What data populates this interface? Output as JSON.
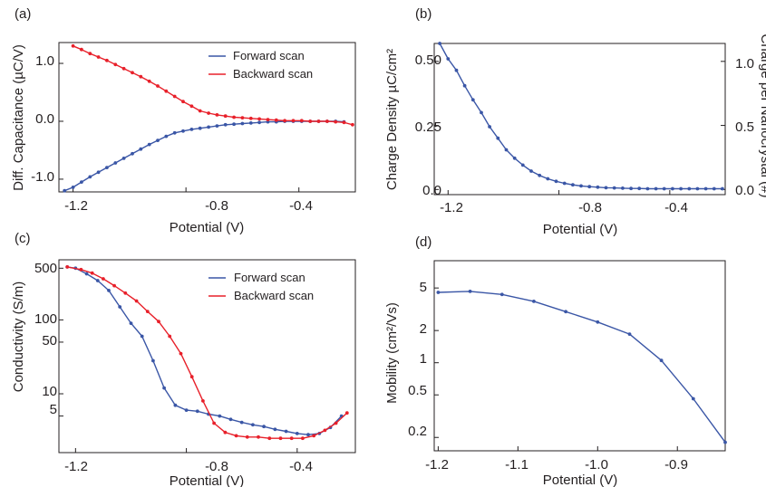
{
  "colors": {
    "forward": "#3a56a6",
    "backward": "#e8202a",
    "axis": "#231f20"
  },
  "chart_data": [
    {
      "panel": "(a)",
      "type": "line",
      "xlabel": "Potential (V)",
      "ylabel": "Diff. Capacitance (µC/V)",
      "xlim": [
        -1.25,
        -0.2
      ],
      "ylim": [
        -1.22,
        1.36
      ],
      "xticks": [
        -1.2,
        -0.8,
        -0.4
      ],
      "xtick_labels": [
        "-1.2",
        "-0.8",
        "-0.4"
      ],
      "yticks": [
        1.0,
        0.0,
        -1.0
      ],
      "ytick_labels": [
        "1.0",
        "0.0",
        "-1.0"
      ],
      "legend": [
        "Forward scan",
        "Backward scan"
      ],
      "series": [
        {
          "name": "Forward scan",
          "color": "#3a56a6",
          "x": [
            -1.23,
            -1.2,
            -1.17,
            -1.14,
            -1.11,
            -1.08,
            -1.05,
            -1.02,
            -0.99,
            -0.96,
            -0.93,
            -0.9,
            -0.87,
            -0.84,
            -0.81,
            -0.78,
            -0.75,
            -0.72,
            -0.69,
            -0.66,
            -0.63,
            -0.6,
            -0.57,
            -0.54,
            -0.51,
            -0.48,
            -0.45,
            -0.42,
            -0.39,
            -0.36,
            -0.33,
            -0.3,
            -0.27,
            -0.24
          ],
          "y": [
            -1.2,
            -1.14,
            -1.05,
            -0.96,
            -0.88,
            -0.8,
            -0.72,
            -0.64,
            -0.56,
            -0.48,
            -0.4,
            -0.33,
            -0.26,
            -0.2,
            -0.17,
            -0.14,
            -0.12,
            -0.1,
            -0.08,
            -0.06,
            -0.05,
            -0.04,
            -0.03,
            -0.02,
            -0.01,
            -0.01,
            0.0,
            0.0,
            0.0,
            0.0,
            0.0,
            0.0,
            0.0,
            -0.01
          ]
        },
        {
          "name": "Backward scan",
          "color": "#e8202a",
          "x": [
            -1.2,
            -1.17,
            -1.14,
            -1.11,
            -1.08,
            -1.05,
            -1.02,
            -0.99,
            -0.96,
            -0.93,
            -0.9,
            -0.87,
            -0.84,
            -0.81,
            -0.78,
            -0.75,
            -0.72,
            -0.69,
            -0.66,
            -0.63,
            -0.6,
            -0.57,
            -0.54,
            -0.51,
            -0.48,
            -0.45,
            -0.42,
            -0.39,
            -0.36,
            -0.33,
            -0.3,
            -0.27,
            -0.24,
            -0.21
          ],
          "y": [
            1.3,
            1.24,
            1.17,
            1.11,
            1.05,
            0.98,
            0.91,
            0.84,
            0.77,
            0.69,
            0.61,
            0.52,
            0.43,
            0.34,
            0.26,
            0.18,
            0.14,
            0.11,
            0.09,
            0.07,
            0.06,
            0.05,
            0.04,
            0.03,
            0.02,
            0.01,
            0.01,
            0.01,
            0.0,
            0.0,
            0.0,
            -0.01,
            -0.02,
            -0.06
          ]
        }
      ]
    },
    {
      "panel": "(b)",
      "type": "line",
      "xlabel": "Potential (V)",
      "ylabel": "Charge Density µC/cm²",
      "ylabel_right": "Charge per Nanocrystal (#)",
      "xlim": [
        -1.25,
        -0.2
      ],
      "ylim": [
        -0.02,
        0.57
      ],
      "ylim_right": [
        -0.04,
        1.14
      ],
      "xticks": [
        -1.2,
        -0.8,
        -0.4
      ],
      "xtick_labels": [
        "-1.2",
        "-0.8",
        "-0.4"
      ],
      "yticks": [
        0.5,
        0.25,
        0.0
      ],
      "ytick_labels": [
        "0.50",
        "0.25",
        "0.0"
      ],
      "yticks_right": [
        1.0,
        0.5,
        0.0
      ],
      "ytick_labels_right": [
        "1.0",
        "0.5",
        "0.0"
      ],
      "series": [
        {
          "color": "#3a56a6",
          "x": [
            -1.23,
            -1.2,
            -1.17,
            -1.14,
            -1.11,
            -1.08,
            -1.05,
            -1.02,
            -0.99,
            -0.96,
            -0.93,
            -0.9,
            -0.87,
            -0.84,
            -0.81,
            -0.78,
            -0.75,
            -0.72,
            -0.69,
            -0.66,
            -0.63,
            -0.6,
            -0.57,
            -0.54,
            -0.51,
            -0.48,
            -0.45,
            -0.42,
            -0.39,
            -0.36,
            -0.33,
            -0.3,
            -0.27,
            -0.24,
            -0.21
          ],
          "y": [
            0.57,
            0.51,
            0.465,
            0.405,
            0.35,
            0.3,
            0.245,
            0.2,
            0.155,
            0.122,
            0.095,
            0.072,
            0.055,
            0.042,
            0.032,
            0.024,
            0.018,
            0.014,
            0.011,
            0.009,
            0.007,
            0.006,
            0.005,
            0.004,
            0.004,
            0.003,
            0.003,
            0.003,
            0.003,
            0.003,
            0.003,
            0.003,
            0.003,
            0.003,
            0.003
          ]
        }
      ]
    },
    {
      "panel": "(c)",
      "type": "line",
      "scale_y": "log",
      "xlabel": "Potential (V)",
      "ylabel": "Conductivity (S/m)",
      "xlim": [
        -1.26,
        -0.19
      ],
      "ylim": [
        1.6,
        650
      ],
      "xticks": [
        -1.2,
        -0.8,
        -0.4
      ],
      "xtick_labels": [
        "-1.2",
        "-0.8",
        "-0.4"
      ],
      "yticks": [
        500,
        100,
        50,
        10,
        5
      ],
      "ytick_labels": [
        "500",
        "100",
        "50",
        "10",
        "5"
      ],
      "legend": [
        "Forward scan",
        "Backward scan"
      ],
      "series": [
        {
          "name": "Forward scan",
          "color": "#3a56a6",
          "x": [
            -1.23,
            -1.2,
            -1.16,
            -1.12,
            -1.08,
            -1.04,
            -1.0,
            -0.96,
            -0.92,
            -0.88,
            -0.84,
            -0.8,
            -0.76,
            -0.72,
            -0.68,
            -0.64,
            -0.6,
            -0.56,
            -0.52,
            -0.48,
            -0.44,
            -0.4,
            -0.36,
            -0.32,
            -0.28,
            -0.24
          ],
          "y": [
            520,
            500,
            420,
            340,
            250,
            150,
            90,
            60,
            28,
            12,
            7,
            6,
            5.8,
            5.3,
            5.0,
            4.5,
            4.1,
            3.8,
            3.6,
            3.3,
            3.1,
            2.9,
            2.8,
            2.9,
            3.5,
            5.0
          ]
        },
        {
          "name": "Backward scan",
          "color": "#e8202a",
          "x": [
            -1.23,
            -1.18,
            -1.14,
            -1.1,
            -1.06,
            -1.02,
            -0.98,
            -0.94,
            -0.9,
            -0.86,
            -0.82,
            -0.78,
            -0.74,
            -0.7,
            -0.66,
            -0.62,
            -0.58,
            -0.54,
            -0.5,
            -0.46,
            -0.42,
            -0.38,
            -0.34,
            -0.3,
            -0.26,
            -0.22
          ],
          "y": [
            520,
            480,
            430,
            360,
            290,
            230,
            180,
            130,
            95,
            60,
            35,
            17,
            8,
            4.0,
            3.0,
            2.7,
            2.6,
            2.6,
            2.5,
            2.5,
            2.5,
            2.5,
            2.7,
            3.2,
            4.0,
            5.5
          ]
        }
      ]
    },
    {
      "panel": "(d)",
      "type": "line",
      "scale_y": "log",
      "xlabel": "Potential (V)",
      "ylabel": "Mobility (cm²/Vs)",
      "xlim": [
        -1.205,
        -0.84
      ],
      "ylim": [
        0.15,
        9
      ],
      "xticks": [
        -1.2,
        -1.1,
        -1.0,
        -0.9
      ],
      "xtick_labels": [
        "-1.2",
        "-1.1",
        "-1.0",
        "-0.9"
      ],
      "yticks": [
        5,
        2,
        1,
        0.5,
        0.2
      ],
      "ytick_labels": [
        "5",
        "2",
        "1",
        "0.5",
        "0.2"
      ],
      "series": [
        {
          "color": "#3a56a6",
          "x": [
            -1.2,
            -1.16,
            -1.12,
            -1.08,
            -1.04,
            -1.0,
            -0.96,
            -0.92,
            -0.88,
            -0.84
          ],
          "y": [
            4.55,
            4.65,
            4.35,
            3.75,
            3.0,
            2.4,
            1.85,
            1.05,
            0.46,
            0.18
          ]
        }
      ]
    }
  ]
}
